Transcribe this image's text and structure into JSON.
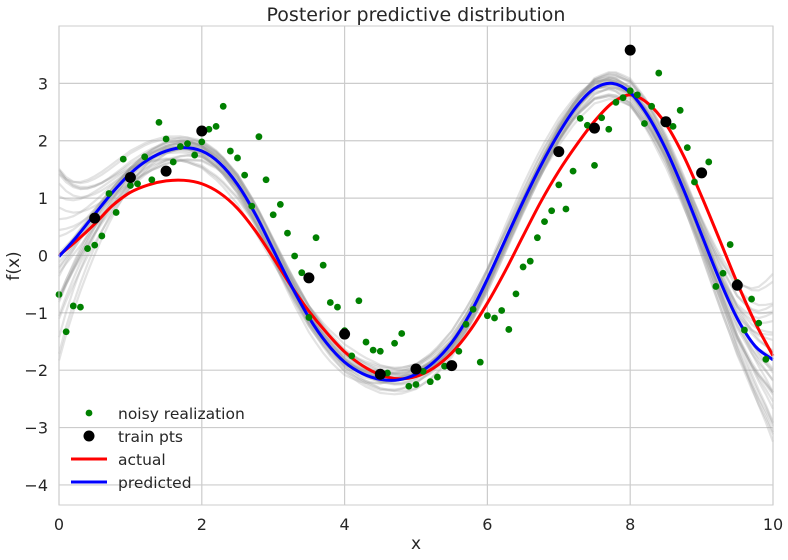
{
  "chart_data": {
    "type": "line",
    "title": "Posterior predictive distribution",
    "xlabel": "x",
    "ylabel": "f(x)",
    "xlim": [
      0,
      10
    ],
    "ylim": [
      -4.35,
      4.0
    ],
    "x_ticks": [
      0,
      2,
      4,
      6,
      8,
      10
    ],
    "x_tick_labels": [
      "0",
      "2",
      "4",
      "6",
      "8",
      "10"
    ],
    "y_ticks": [
      3,
      2,
      1,
      0,
      -1,
      -2,
      -3,
      -4
    ],
    "y_tick_labels": [
      "3",
      "2",
      "1",
      "0",
      "−1",
      "−2",
      "−3",
      "−4"
    ],
    "grid": true,
    "legend_position": "lower-left",
    "legend": [
      {
        "label": "noisy realization",
        "kind": "dot",
        "color": "#008000"
      },
      {
        "label": "train pts",
        "kind": "dot-large",
        "color": "#000000"
      },
      {
        "label": "actual",
        "kind": "line",
        "color": "#ff0000"
      },
      {
        "label": "predicted",
        "kind": "line",
        "color": "#0000ff"
      }
    ],
    "series": [
      {
        "name": "actual",
        "color": "#ff0000",
        "x": [
          0,
          0.25,
          0.5,
          0.75,
          1.0,
          1.25,
          1.5,
          1.75,
          2.0,
          2.25,
          2.5,
          2.75,
          3.0,
          3.25,
          3.5,
          3.75,
          4.0,
          4.25,
          4.5,
          4.75,
          5.0,
          5.25,
          5.5,
          5.75,
          6.0,
          6.25,
          6.5,
          6.75,
          7.0,
          7.25,
          7.5,
          7.75,
          8.0,
          8.25,
          8.5,
          8.75,
          9.0,
          9.25,
          9.5,
          9.75,
          10.0
        ],
        "y": [
          0.0,
          0.26,
          0.55,
          0.87,
          1.1,
          1.23,
          1.3,
          1.31,
          1.25,
          1.09,
          0.82,
          0.43,
          -0.04,
          -0.53,
          -0.97,
          -1.35,
          -1.68,
          -1.92,
          -2.08,
          -2.15,
          -2.11,
          -1.96,
          -1.7,
          -1.32,
          -0.83,
          -0.27,
          0.34,
          0.94,
          1.47,
          1.93,
          2.34,
          2.66,
          2.8,
          2.65,
          2.29,
          1.73,
          1.03,
          0.28,
          -0.48,
          -1.17,
          -1.75
        ]
      },
      {
        "name": "predicted",
        "color": "#0000ff",
        "x": [
          0,
          0.25,
          0.5,
          0.75,
          1.0,
          1.25,
          1.5,
          1.75,
          2.0,
          2.25,
          2.5,
          2.75,
          3.0,
          3.25,
          3.5,
          3.75,
          4.0,
          4.25,
          4.5,
          4.75,
          5.0,
          5.25,
          5.5,
          5.75,
          6.0,
          6.25,
          6.5,
          6.75,
          7.0,
          7.25,
          7.5,
          7.75,
          8.0,
          8.25,
          8.5,
          8.75,
          9.0,
          9.25,
          9.5,
          9.75,
          10.0
        ],
        "y": [
          -0.02,
          0.33,
          0.72,
          1.1,
          1.43,
          1.67,
          1.82,
          1.88,
          1.82,
          1.61,
          1.24,
          0.72,
          0.1,
          -0.52,
          -1.08,
          -1.53,
          -1.86,
          -2.06,
          -2.16,
          -2.17,
          -2.07,
          -1.86,
          -1.52,
          -1.03,
          -0.41,
          0.27,
          0.94,
          1.57,
          2.13,
          2.6,
          2.91,
          3.0,
          2.84,
          2.43,
          1.85,
          1.14,
          0.36,
          -0.42,
          -1.1,
          -1.58,
          -1.82
        ]
      },
      {
        "name": "train pts",
        "color": "#000000",
        "x": [
          0.5,
          1.0,
          1.5,
          2.0,
          3.5,
          4.0,
          4.5,
          5.0,
          5.5,
          7.0,
          7.5,
          8.0,
          8.5,
          9.0,
          9.5
        ],
        "y": [
          0.65,
          1.36,
          1.47,
          2.17,
          -0.39,
          -1.37,
          -2.07,
          -1.98,
          -1.92,
          1.81,
          2.22,
          3.58,
          2.33,
          1.44,
          -0.52
        ]
      },
      {
        "name": "noisy realization",
        "color": "#008000",
        "x": [
          0.0,
          0.1,
          0.2,
          0.3,
          0.4,
          0.5,
          0.6,
          0.7,
          0.8,
          0.9,
          1.0,
          1.1,
          1.2,
          1.3,
          1.4,
          1.5,
          1.6,
          1.7,
          1.8,
          1.9,
          2.0,
          2.1,
          2.2,
          2.3,
          2.4,
          2.5,
          2.6,
          2.7,
          2.8,
          2.9,
          3.0,
          3.1,
          3.2,
          3.3,
          3.4,
          3.5,
          3.6,
          3.7,
          3.8,
          3.9,
          4.0,
          4.1,
          4.2,
          4.3,
          4.4,
          4.5,
          4.6,
          4.7,
          4.8,
          4.9,
          5.0,
          5.1,
          5.2,
          5.3,
          5.4,
          5.5,
          5.6,
          5.7,
          5.8,
          5.9,
          6.0,
          6.1,
          6.2,
          6.3,
          6.4,
          6.5,
          6.6,
          6.7,
          6.8,
          6.9,
          7.0,
          7.1,
          7.2,
          7.3,
          7.4,
          7.5,
          7.6,
          7.7,
          7.8,
          7.9,
          8.0,
          8.1,
          8.2,
          8.3,
          8.4,
          8.5,
          8.6,
          8.7,
          8.8,
          8.9,
          9.0,
          9.1,
          9.2,
          9.3,
          9.4,
          9.5,
          9.6,
          9.7,
          9.8,
          9.9
        ],
        "y": [
          -0.68,
          -1.33,
          -0.88,
          -0.9,
          0.12,
          0.18,
          0.34,
          1.08,
          0.75,
          1.68,
          1.22,
          1.25,
          1.72,
          1.32,
          2.32,
          2.03,
          1.63,
          1.9,
          1.95,
          1.75,
          1.98,
          2.2,
          2.25,
          2.6,
          1.82,
          1.7,
          1.4,
          0.86,
          2.07,
          1.32,
          0.71,
          0.89,
          0.39,
          -0.01,
          -0.3,
          -1.08,
          0.31,
          -0.17,
          -0.82,
          -0.9,
          -1.31,
          -1.75,
          -0.79,
          -1.51,
          -1.65,
          -1.67,
          -2.05,
          -1.53,
          -1.36,
          -2.28,
          -2.25,
          -2.02,
          -2.2,
          -2.12,
          -1.93,
          -1.95,
          -1.67,
          -1.2,
          -0.94,
          -1.86,
          -1.05,
          -1.09,
          -0.96,
          -1.29,
          -0.67,
          -0.2,
          -0.1,
          0.31,
          0.59,
          0.78,
          1.23,
          0.81,
          1.47,
          2.39,
          2.27,
          1.57,
          2.4,
          2.2,
          2.67,
          2.75,
          2.87,
          2.8,
          2.3,
          2.6,
          3.18,
          2.34,
          2.25,
          2.53,
          1.88,
          1.28,
          1.45,
          1.63,
          -0.54,
          -0.31,
          0.19,
          -0.47,
          -1.3,
          -0.76,
          -1.18,
          -1.81
        ]
      }
    ]
  }
}
